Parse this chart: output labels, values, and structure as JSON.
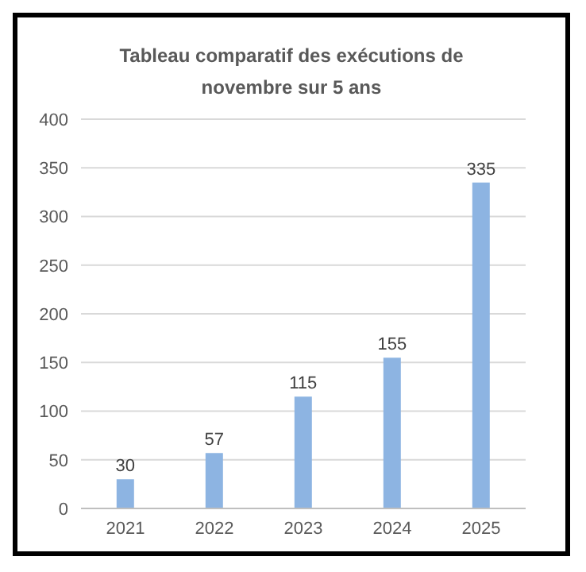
{
  "chart_data": {
    "type": "bar",
    "title": "Tableau comparatif des exécutions de novembre sur 5 ans",
    "categories": [
      "2021",
      "2022",
      "2023",
      "2024",
      "2025"
    ],
    "values": [
      30,
      57,
      115,
      155,
      335
    ],
    "color": "#8db4e2",
    "ylim": [
      0,
      400
    ],
    "yticks": [
      0,
      50,
      100,
      150,
      200,
      250,
      300,
      350,
      400
    ],
    "grid": "y",
    "data_labels": true
  }
}
